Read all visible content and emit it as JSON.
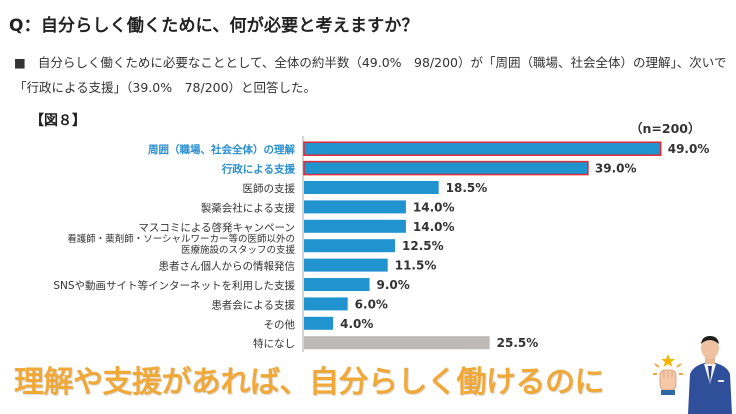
{
  "header": {
    "question": "Q：自分らしく働くために、何が必要と考えますか？",
    "bullet": "■",
    "description": "自分らしく働くために必要なこととして、全体の約半数（49.0%　98/200）が「周囲（職場、社会全体）の理解」、次いで「行政による支援」（39.0%　78/200）と回答した。"
  },
  "figure_label": "【図８】",
  "chart_data": {
    "type": "bar",
    "orientation": "horizontal",
    "title": "",
    "n_label": "（n=200）",
    "xlabel": "",
    "ylabel": "",
    "xlim": [
      0,
      50
    ],
    "grid": false,
    "categories": [
      "周囲（職場、社会全体）の理解",
      "行政による支援",
      "医師の支援",
      "製薬会社による支援",
      "マスコミによる啓発キャンペーン",
      "看護師・薬剤師・ソーシャルワーカー等の医師以外の医療施設のスタッフの支援",
      "患者さん個人からの情報発信",
      "SNSや動画サイト等インターネットを利用した支援",
      "患者会による支援",
      "その他",
      "特になし"
    ],
    "category_lines": [
      [
        "周囲（職場、社会全体）の理解"
      ],
      [
        "行政による支援"
      ],
      [
        "医師の支援"
      ],
      [
        "製薬会社による支援"
      ],
      [
        "マスコミによる啓発キャンペーン"
      ],
      [
        "看護師・薬剤師・ソーシャルワーカー等の医師以外の",
        "医療施設のスタッフの支援"
      ],
      [
        "患者さん個人からの情報発信"
      ],
      [
        "SNSや動画サイト等インターネットを利用した支援"
      ],
      [
        "患者会による支援"
      ],
      [
        "その他"
      ],
      [
        "特になし"
      ]
    ],
    "values": [
      49.0,
      39.0,
      18.5,
      14.0,
      14.0,
      12.5,
      11.5,
      9.0,
      6.0,
      4.0,
      25.5
    ],
    "value_labels": [
      "49.0%",
      "39.0%",
      "18.5%",
      "14.0%",
      "14.0%",
      "12.5%",
      "11.5%",
      "9.0%",
      "6.0%",
      "4.0%",
      "25.5%"
    ],
    "highlighted": [
      true,
      true,
      false,
      false,
      false,
      false,
      false,
      false,
      false,
      false,
      false
    ],
    "bar_colors": [
      "#2194d0",
      "#2194d0",
      "#2194d0",
      "#2194d0",
      "#2194d0",
      "#2194d0",
      "#2194d0",
      "#2194d0",
      "#2194d0",
      "#2194d0",
      "#bdb9b6"
    ]
  },
  "colors": {
    "bar": "#2194d0",
    "bar_none": "#bdb9b6",
    "highlight_border": "#e02a36",
    "highlight_text": "#2a8fd0",
    "banner": "#f0a838"
  },
  "banner": {
    "text": "理解や支援があれば、自分らしく働けるのに"
  }
}
